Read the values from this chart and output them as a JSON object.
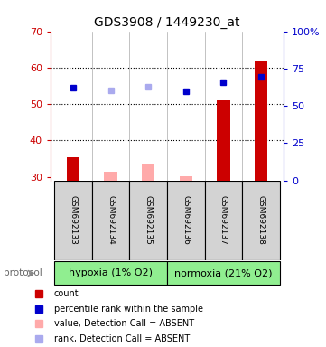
{
  "title": "GDS3908 / 1449230_at",
  "samples": [
    "GSM692133",
    "GSM692134",
    "GSM692135",
    "GSM692136",
    "GSM692137",
    "GSM692138"
  ],
  "ylim_left": [
    29,
    70
  ],
  "ylim_right": [
    0,
    100
  ],
  "yticks_left": [
    30,
    40,
    50,
    60,
    70
  ],
  "yticks_right": [
    0,
    25,
    50,
    75,
    100
  ],
  "ytick_labels_right": [
    "0",
    "25",
    "50",
    "75",
    "100%"
  ],
  "count_bars": [
    35.5,
    0,
    0,
    0,
    51,
    62
  ],
  "count_bars_absent": [
    0,
    31.5,
    33.5,
    30.2,
    0,
    0
  ],
  "count_bar_color": "#cc0000",
  "count_bar_absent_color": "#ffaaaa",
  "percentile_rank": [
    54.5,
    0,
    0,
    53.5,
    56,
    57.5
  ],
  "percentile_rank_absent": [
    0,
    53.8,
    54.8,
    0,
    0,
    0
  ],
  "percentile_rank_color": "#0000cc",
  "percentile_rank_absent_color": "#aaaaee",
  "bar_width": 0.35,
  "left_axis_color": "#cc0000",
  "right_axis_color": "#0000cc",
  "group_color": "#90ee90",
  "hypoxia_label": "hypoxia (1% O2)",
  "normoxia_label": "normoxia (21% O2)",
  "protocol_label": "protocol",
  "legend_items": [
    {
      "label": "count",
      "color": "#cc0000"
    },
    {
      "label": "percentile rank within the sample",
      "color": "#0000cc"
    },
    {
      "label": "value, Detection Call = ABSENT",
      "color": "#ffaaaa"
    },
    {
      "label": "rank, Detection Call = ABSENT",
      "color": "#aaaaee"
    }
  ]
}
